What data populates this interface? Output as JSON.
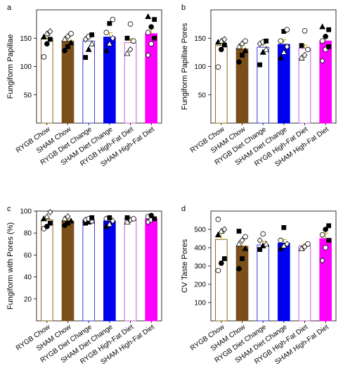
{
  "figure": {
    "categories": [
      "RYGB Chow",
      "SHAM Chow",
      "RYGB Diet Change",
      "SHAM Diet Change",
      "RYGB High-Fat Diet",
      "SHAM High-Fat Diet"
    ],
    "colors": {
      "rygb_chow": "#8B6914",
      "sham_chow": "#7B4F19",
      "rygb_diet_change": "#3A3ACF",
      "sham_diet_change": "#0000F0",
      "rygb_high_fat": "#C060C0",
      "sham_high_fat": "#FF00FF"
    }
  },
  "chart_data": [
    {
      "panel": "a",
      "type": "bar",
      "ylabel": "Fungiform Papillae",
      "ylim": [
        0,
        200
      ],
      "yticks": [
        50,
        100,
        150
      ],
      "categories": [
        "RYGB Chow",
        "SHAM Chow",
        "RYGB Diet Change",
        "SHAM Diet Change",
        "RYGB High-Fat Diet",
        "SHAM High-Fat Diet"
      ],
      "values": [
        149,
        145,
        145,
        152,
        142,
        158
      ],
      "errors": [
        7,
        6,
        6,
        8,
        7,
        10
      ],
      "points": [
        [
          117,
          140,
          148,
          152,
          158,
          162
        ],
        [
          128,
          135,
          142,
          148,
          153,
          158
        ],
        [
          116,
          130,
          140,
          148,
          153,
          156
        ],
        [
          128,
          140,
          150,
          160,
          176,
          183
        ],
        [
          123,
          130,
          145,
          150,
          175
        ],
        [
          120,
          140,
          150,
          160,
          170,
          183,
          188
        ]
      ],
      "grid": false
    },
    {
      "panel": "b",
      "type": "bar",
      "ylabel": "Fungiform Papillae Pores",
      "ylim": [
        0,
        200
      ],
      "yticks": [
        50,
        100,
        150
      ],
      "categories": [
        "RYGB Chow",
        "SHAM Chow",
        "RYGB Diet Change",
        "SHAM Diet Change",
        "RYGB High-Fat Diet",
        "SHAM High-Fat Diet"
      ],
      "values": [
        137,
        131,
        134,
        139,
        132,
        145
      ],
      "errors": [
        6,
        6,
        6,
        8,
        6,
        9
      ],
      "points": [
        [
          99,
          130,
          138,
          143,
          145,
          148
        ],
        [
          108,
          120,
          128,
          135,
          140,
          145
        ],
        [
          103,
          125,
          130,
          140,
          143,
          145
        ],
        [
          115,
          125,
          135,
          145,
          162,
          165
        ],
        [
          115,
          120,
          130,
          137,
          163
        ],
        [
          110,
          130,
          135,
          145,
          153,
          165,
          170
        ]
      ],
      "grid": false
    },
    {
      "panel": "c",
      "type": "bar",
      "ylabel": "Fungiform with Pores (%)",
      "ylim": [
        0,
        100
      ],
      "yticks": [
        20,
        40,
        60,
        80,
        100
      ],
      "categories": [
        "RYGB Chow",
        "SHAM Chow",
        "RYGB Diet Change",
        "SHAM Diet Change",
        "RYGB High-Fat Diet",
        "SHAM High-Fat Diet"
      ],
      "values": [
        92,
        91,
        92,
        91,
        93,
        93
      ],
      "errors": [
        2,
        1,
        1,
        1,
        1,
        1
      ],
      "points": [
        [
          84,
          86,
          89,
          93,
          95,
          99
        ],
        [
          87,
          89,
          91,
          93,
          95
        ],
        [
          89,
          90,
          91,
          92,
          93,
          94
        ],
        [
          86,
          88,
          91,
          93,
          94
        ],
        [
          90,
          92,
          93,
          94
        ],
        [
          90,
          92,
          93,
          95,
          96
        ]
      ],
      "grid": false
    },
    {
      "panel": "d",
      "type": "bar",
      "ylabel": "CV Taste Pores",
      "ylim": [
        0,
        600
      ],
      "yticks": [
        100,
        200,
        300,
        400,
        500
      ],
      "categories": [
        "RYGB Chow",
        "SHAM Chow",
        "RYGB Diet Change",
        "SHAM Diet Change",
        "RYGB High-Fat Diet",
        "SHAM High-Fat Diet"
      ],
      "values": [
        445,
        408,
        415,
        425,
        410,
        450
      ],
      "errors": [
        40,
        30,
        20,
        20,
        10,
        30
      ],
      "points": [
        [
          275,
          315,
          340,
          470,
          490,
          500,
          555
        ],
        [
          285,
          340,
          395,
          420,
          440,
          460,
          490
        ],
        [
          390,
          410,
          420,
          440,
          475
        ],
        [
          395,
          410,
          420,
          440,
          510
        ],
        [
          395,
          405,
          420
        ],
        [
          330,
          400,
          440,
          470,
          500,
          520
        ]
      ],
      "grid": false
    }
  ]
}
